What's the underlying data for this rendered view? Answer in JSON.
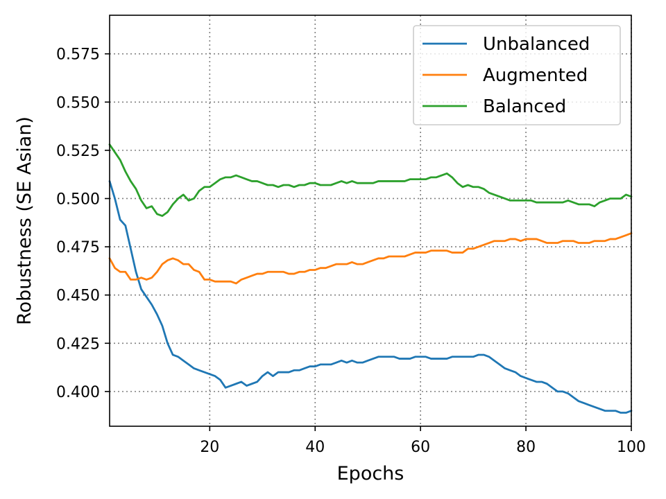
{
  "chart_data": {
    "type": "line",
    "title": "",
    "xlabel": "Epochs",
    "ylabel": "Robustness (SE Asian)",
    "xlim": [
      1,
      100
    ],
    "ylim": [
      0.382,
      0.595
    ],
    "xticks": [
      20,
      40,
      60,
      80,
      100
    ],
    "yticks": [
      0.4,
      0.425,
      0.45,
      0.475,
      0.5,
      0.525,
      0.55,
      0.575
    ],
    "xtick_labels": [
      "20",
      "40",
      "60",
      "80",
      "100"
    ],
    "ytick_labels": [
      "0.400",
      "0.425",
      "0.450",
      "0.475",
      "0.500",
      "0.525",
      "0.550",
      "0.575"
    ],
    "grid": true,
    "legend_position": "top-right",
    "x": [
      1,
      2,
      3,
      4,
      5,
      6,
      7,
      8,
      9,
      10,
      11,
      12,
      13,
      14,
      15,
      16,
      17,
      18,
      19,
      20,
      21,
      22,
      23,
      24,
      25,
      26,
      27,
      28,
      29,
      30,
      31,
      32,
      33,
      34,
      35,
      36,
      37,
      38,
      39,
      40,
      41,
      42,
      43,
      44,
      45,
      46,
      47,
      48,
      49,
      50,
      51,
      52,
      53,
      54,
      55,
      56,
      57,
      58,
      59,
      60,
      61,
      62,
      63,
      64,
      65,
      66,
      67,
      68,
      69,
      70,
      71,
      72,
      73,
      74,
      75,
      76,
      77,
      78,
      79,
      80,
      81,
      82,
      83,
      84,
      85,
      86,
      87,
      88,
      89,
      90,
      91,
      92,
      93,
      94,
      95,
      96,
      97,
      98,
      99,
      100
    ],
    "series": [
      {
        "name": "Unbalanced",
        "color": "#1f77b4",
        "values": [
          0.509,
          0.5,
          0.489,
          0.486,
          0.474,
          0.462,
          0.453,
          0.449,
          0.445,
          0.44,
          0.434,
          0.425,
          0.419,
          0.418,
          0.416,
          0.414,
          0.412,
          0.411,
          0.41,
          0.409,
          0.408,
          0.406,
          0.402,
          0.403,
          0.404,
          0.405,
          0.403,
          0.404,
          0.405,
          0.408,
          0.41,
          0.408,
          0.41,
          0.41,
          0.41,
          0.411,
          0.411,
          0.412,
          0.413,
          0.413,
          0.414,
          0.414,
          0.414,
          0.415,
          0.416,
          0.415,
          0.416,
          0.415,
          0.415,
          0.416,
          0.417,
          0.418,
          0.418,
          0.418,
          0.418,
          0.417,
          0.417,
          0.417,
          0.418,
          0.418,
          0.418,
          0.417,
          0.417,
          0.417,
          0.417,
          0.418,
          0.418,
          0.418,
          0.418,
          0.418,
          0.419,
          0.419,
          0.418,
          0.416,
          0.414,
          0.412,
          0.411,
          0.41,
          0.408,
          0.407,
          0.406,
          0.405,
          0.405,
          0.404,
          0.402,
          0.4,
          0.4,
          0.399,
          0.397,
          0.395,
          0.394,
          0.393,
          0.392,
          0.391,
          0.39,
          0.39,
          0.39,
          0.389,
          0.389,
          0.39
        ]
      },
      {
        "name": "Augmented",
        "color": "#ff7f0e",
        "values": [
          0.469,
          0.464,
          0.462,
          0.462,
          0.458,
          0.458,
          0.459,
          0.458,
          0.459,
          0.462,
          0.466,
          0.468,
          0.469,
          0.468,
          0.466,
          0.466,
          0.463,
          0.462,
          0.458,
          0.458,
          0.457,
          0.457,
          0.457,
          0.457,
          0.456,
          0.458,
          0.459,
          0.46,
          0.461,
          0.461,
          0.462,
          0.462,
          0.462,
          0.462,
          0.461,
          0.461,
          0.462,
          0.462,
          0.463,
          0.463,
          0.464,
          0.464,
          0.465,
          0.466,
          0.466,
          0.466,
          0.467,
          0.466,
          0.466,
          0.467,
          0.468,
          0.469,
          0.469,
          0.47,
          0.47,
          0.47,
          0.47,
          0.471,
          0.472,
          0.472,
          0.472,
          0.473,
          0.473,
          0.473,
          0.473,
          0.472,
          0.472,
          0.472,
          0.474,
          0.474,
          0.475,
          0.476,
          0.477,
          0.478,
          0.478,
          0.478,
          0.479,
          0.479,
          0.478,
          0.479,
          0.479,
          0.479,
          0.478,
          0.477,
          0.477,
          0.477,
          0.478,
          0.478,
          0.478,
          0.477,
          0.477,
          0.477,
          0.478,
          0.478,
          0.478,
          0.479,
          0.479,
          0.48,
          0.481,
          0.482
        ]
      },
      {
        "name": "Balanced",
        "color": "#2ca02c",
        "values": [
          0.528,
          0.524,
          0.52,
          0.514,
          0.509,
          0.505,
          0.499,
          0.495,
          0.496,
          0.492,
          0.491,
          0.493,
          0.497,
          0.5,
          0.502,
          0.499,
          0.5,
          0.504,
          0.506,
          0.506,
          0.508,
          0.51,
          0.511,
          0.511,
          0.512,
          0.511,
          0.51,
          0.509,
          0.509,
          0.508,
          0.507,
          0.507,
          0.506,
          0.507,
          0.507,
          0.506,
          0.507,
          0.507,
          0.508,
          0.508,
          0.507,
          0.507,
          0.507,
          0.508,
          0.509,
          0.508,
          0.509,
          0.508,
          0.508,
          0.508,
          0.508,
          0.509,
          0.509,
          0.509,
          0.509,
          0.509,
          0.509,
          0.51,
          0.51,
          0.51,
          0.51,
          0.511,
          0.511,
          0.512,
          0.513,
          0.511,
          0.508,
          0.506,
          0.507,
          0.506,
          0.506,
          0.505,
          0.503,
          0.502,
          0.501,
          0.5,
          0.499,
          0.499,
          0.499,
          0.499,
          0.499,
          0.498,
          0.498,
          0.498,
          0.498,
          0.498,
          0.498,
          0.499,
          0.498,
          0.497,
          0.497,
          0.497,
          0.496,
          0.498,
          0.499,
          0.5,
          0.5,
          0.5,
          0.502,
          0.501
        ]
      }
    ]
  }
}
